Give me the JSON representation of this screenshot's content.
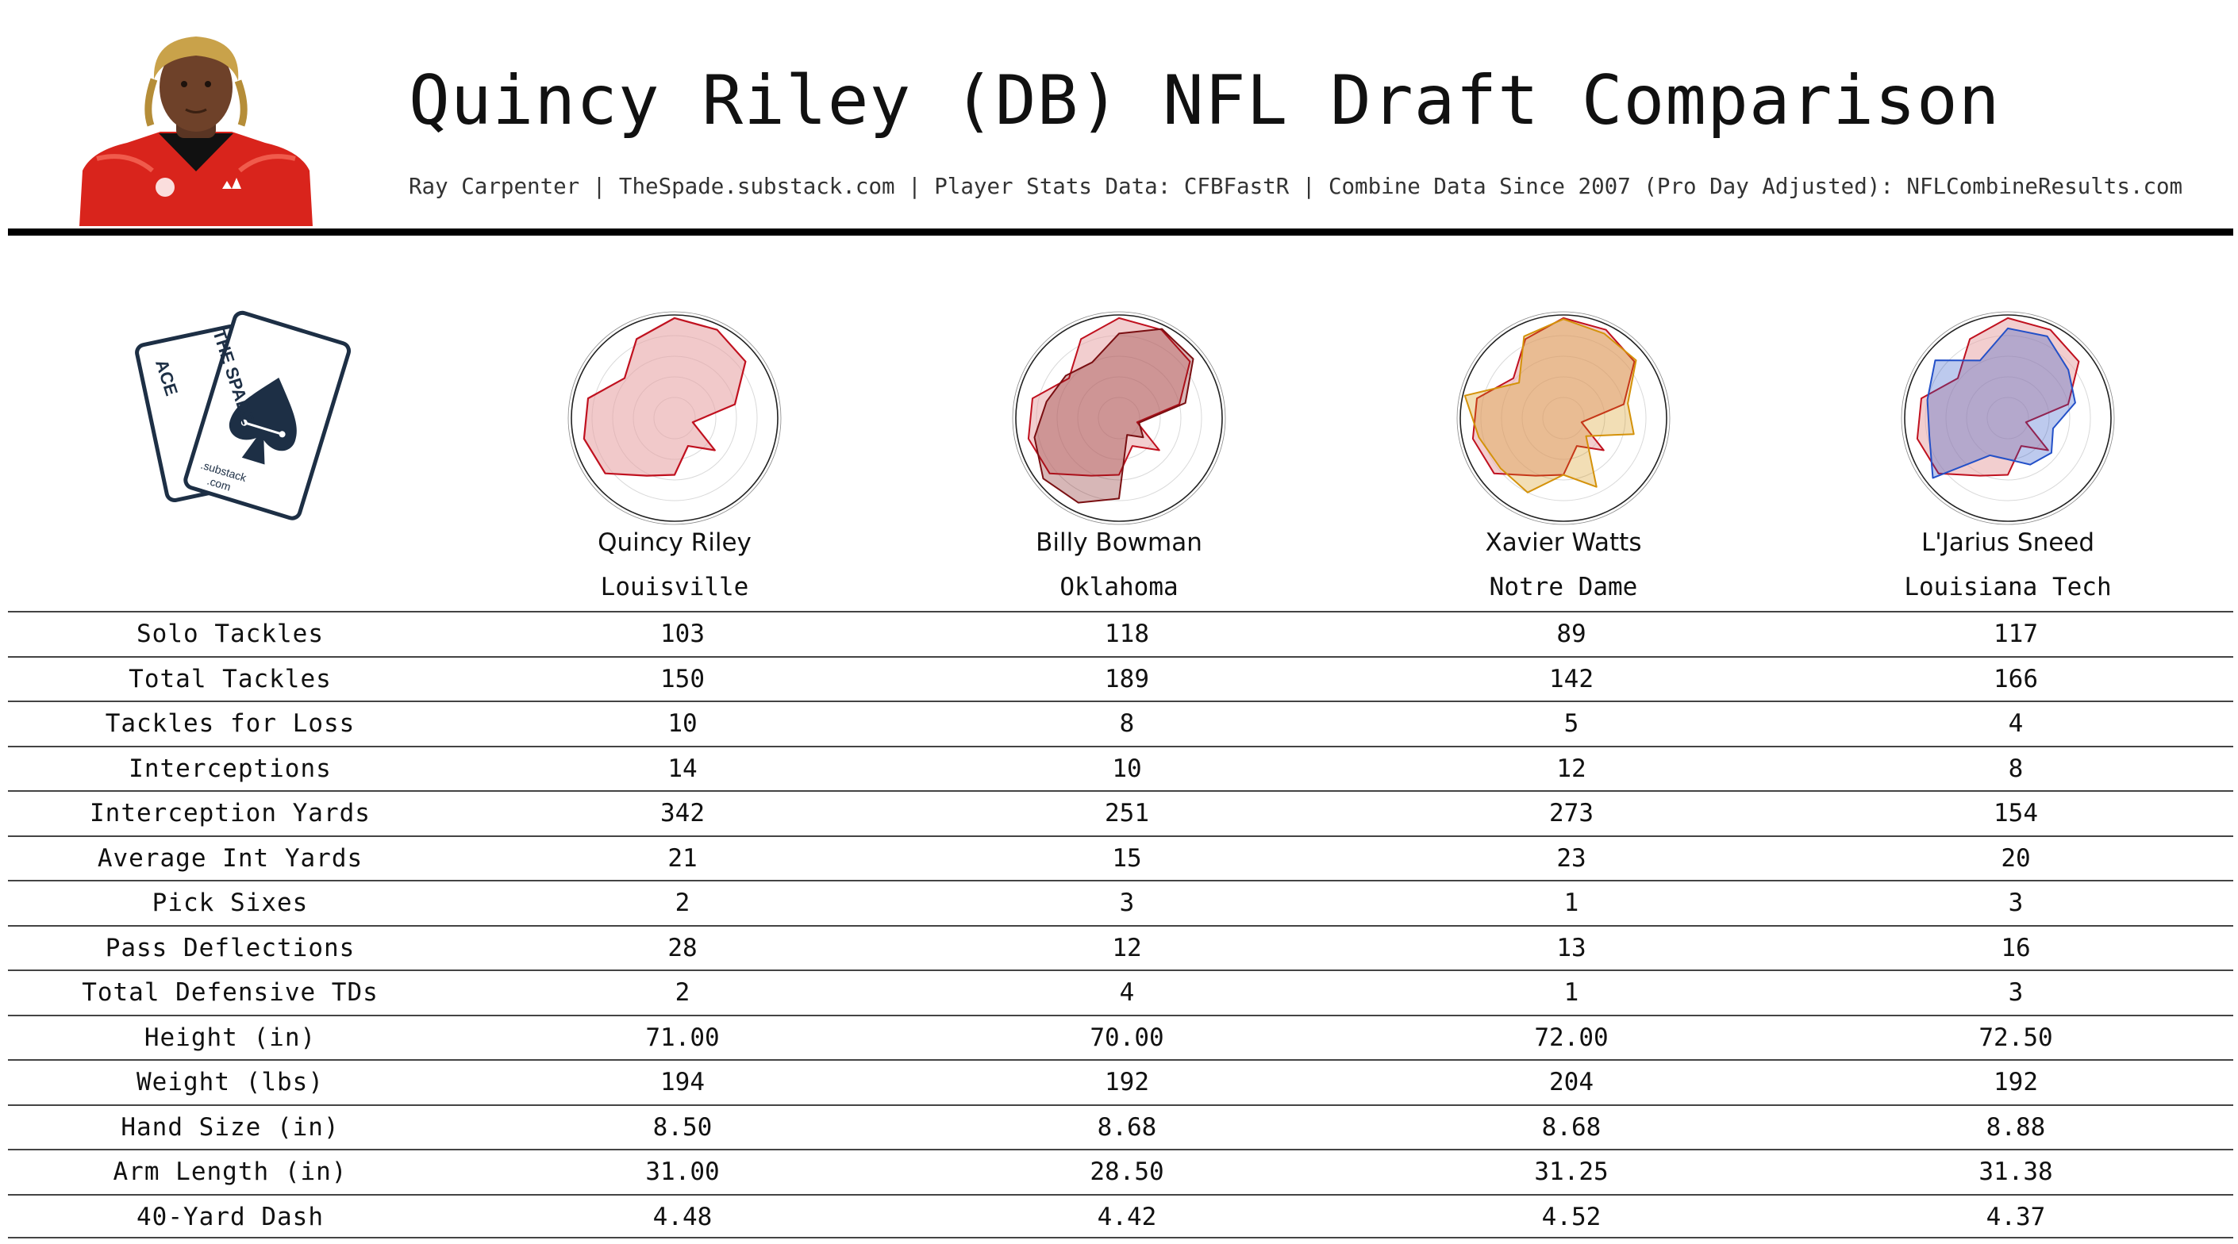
{
  "title": "Quincy Riley (DB) NFL Draft Comparison",
  "subtitle": "Ray Carpenter | TheSpade.substack.com | Player Stats Data: CFBFastR | Combine Data Since 2007 (Pro Day Adjusted): NFLCombineResults.com",
  "logo": {
    "left_card": "ACE",
    "right_card": "THE SPADE",
    "footer_line1": ".substack",
    "footer_line2": ".com"
  },
  "colors": {
    "base_player": "#c0111f",
    "base_fill": "#e7a5a7",
    "compare_1": "#7a0f12",
    "compare_2": "#d4920a",
    "compare_3": "#2350c8"
  },
  "players": [
    {
      "name": "Quincy Riley",
      "school": "Louisville"
    },
    {
      "name": "Billy Bowman",
      "school": "Oklahoma"
    },
    {
      "name": "Xavier Watts",
      "school": "Notre Dame"
    },
    {
      "name": "L'Jarius Sneed",
      "school": "Louisiana Tech"
    }
  ],
  "stats": [
    {
      "label": "Solo Tackles",
      "values": [
        "103",
        "118",
        "89",
        "117"
      ]
    },
    {
      "label": "Total Tackles",
      "values": [
        "150",
        "189",
        "142",
        "166"
      ]
    },
    {
      "label": "Tackles for Loss",
      "values": [
        "10",
        "8",
        "5",
        "4"
      ]
    },
    {
      "label": "Interceptions",
      "values": [
        "14",
        "10",
        "12",
        "8"
      ]
    },
    {
      "label": "Interception Yards",
      "values": [
        "342",
        "251",
        "273",
        "154"
      ]
    },
    {
      "label": "Average Int Yards",
      "values": [
        "21",
        "15",
        "23",
        "20"
      ]
    },
    {
      "label": "Pick Sixes",
      "values": [
        "2",
        "3",
        "1",
        "3"
      ]
    },
    {
      "label": "Pass Deflections",
      "values": [
        "28",
        "12",
        "13",
        "16"
      ]
    },
    {
      "label": "Total Defensive TDs",
      "values": [
        "2",
        "4",
        "1",
        "3"
      ]
    },
    {
      "label": "Height (in)",
      "values": [
        "71.00",
        "70.00",
        "72.00",
        "72.50"
      ]
    },
    {
      "label": "Weight (lbs)",
      "values": [
        "194",
        "192",
        "204",
        "192"
      ]
    },
    {
      "label": "Hand Size (in)",
      "values": [
        "8.50",
        "8.68",
        "8.68",
        "8.88"
      ]
    },
    {
      "label": "Arm Length (in)",
      "values": [
        "31.00",
        "28.50",
        "31.25",
        "31.38"
      ]
    },
    {
      "label": "40-Yard Dash",
      "values": [
        "4.48",
        "4.42",
        "4.52",
        "4.37"
      ]
    }
  ],
  "chart_data": {
    "type": "radar",
    "axes": [
      "Solo Tackles",
      "Total Tackles",
      "Tackles for Loss",
      "Interceptions",
      "Interception Yards",
      "Average Int Yards",
      "Pick Sixes",
      "Pass Deflections",
      "Total Defensive TDs",
      "Height (in)",
      "Weight (lbs)",
      "Hand Size (in)",
      "Arm Length (in)",
      "40-Yard Dash"
    ],
    "grid": true,
    "rlim": [
      0,
      1
    ],
    "series": [
      {
        "name": "Quincy Riley",
        "values": [
          0.97,
          0.95,
          0.88,
          0.6,
          0.18,
          0.5,
          0.3,
          0.55,
          0.62,
          0.86,
          0.9,
          0.86,
          0.62,
          0.85
        ]
      },
      {
        "name": "Billy Bowman",
        "values": [
          0.82,
          0.96,
          0.92,
          0.66,
          0.2,
          0.3,
          0.18,
          0.78,
          0.91,
          0.94,
          0.84,
          0.72,
          0.66,
          0.6
        ]
      },
      {
        "name": "Xavier Watts",
        "values": [
          0.96,
          0.91,
          0.9,
          0.64,
          0.7,
          0.28,
          0.74,
          0.55,
          0.8,
          0.78,
          0.84,
          0.98,
          0.55,
          0.88
        ]
      },
      {
        "name": "L'Jarius Sneed",
        "values": [
          0.87,
          0.88,
          0.75,
          0.67,
          0.45,
          0.54,
          0.5,
          0.4,
          0.4,
          0.93,
          0.78,
          0.8,
          0.9,
          0.62
        ]
      }
    ]
  }
}
